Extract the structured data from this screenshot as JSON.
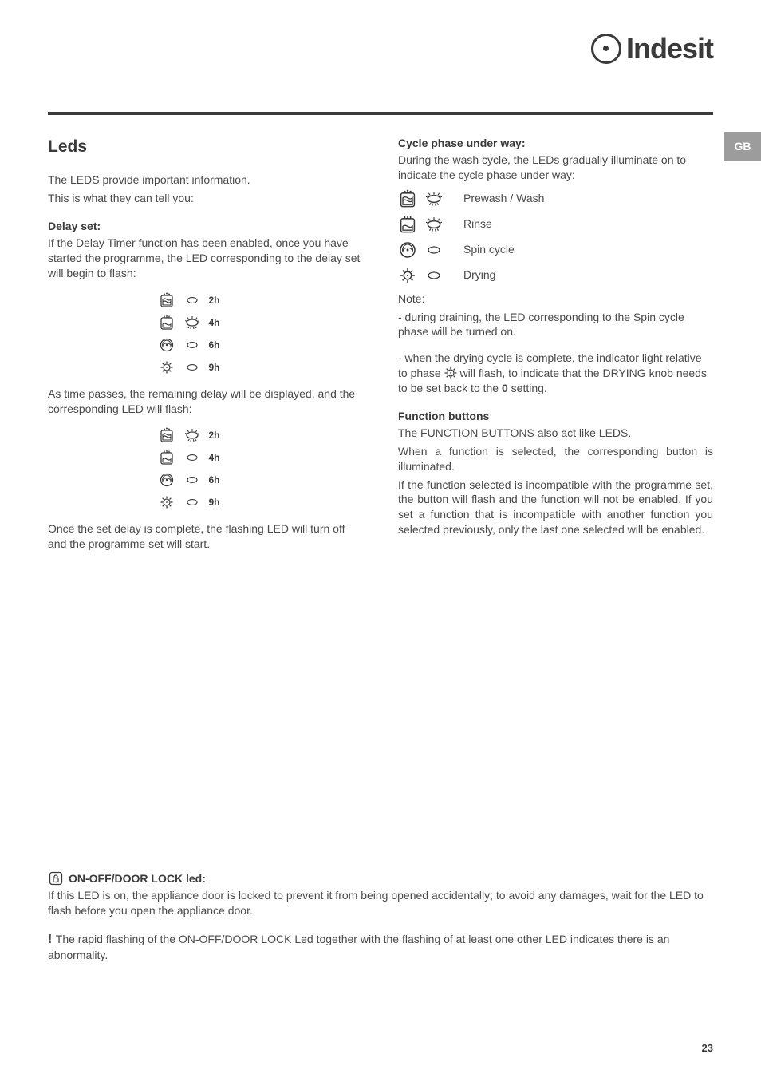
{
  "brand": {
    "name": "Indesit"
  },
  "lang_tab": "GB",
  "left": {
    "heading": "Leds",
    "intro1": "The LEDS provide important information.",
    "intro2": "This is what they can tell you:",
    "delay_heading": "Delay set:",
    "delay_text": "If the Delay Timer function has been enabled, once you have started the programme, the LED corresponding to the delay set will begin to flash:",
    "delay_group1": [
      {
        "phase": "prewash",
        "led": "off",
        "label": "2h"
      },
      {
        "phase": "rinse",
        "led": "flash",
        "label": "4h"
      },
      {
        "phase": "spin",
        "led": "off",
        "label": "6h"
      },
      {
        "phase": "dry",
        "led": "off",
        "label": "9h"
      }
    ],
    "mid_text": "As time passes, the remaining delay will be displayed, and the corresponding LED will flash:",
    "delay_group2": [
      {
        "phase": "prewash",
        "led": "flash",
        "label": "2h"
      },
      {
        "phase": "rinse",
        "led": "off",
        "label": "4h"
      },
      {
        "phase": "spin",
        "led": "off",
        "label": "6h"
      },
      {
        "phase": "dry",
        "led": "off",
        "label": "9h"
      }
    ],
    "end_text": "Once the set delay is complete, the flashing LED will turn off and the programme set will start."
  },
  "right": {
    "cycle_heading": "Cycle phase under way:",
    "cycle_text": "During the wash cycle, the LEDs gradually illuminate  on to indicate the cycle phase under way:",
    "phases": [
      {
        "phase": "prewash",
        "led": "flash",
        "label": "Prewash / Wash"
      },
      {
        "phase": "rinse",
        "led": "flash",
        "label": "Rinse"
      },
      {
        "phase": "spin",
        "led": "off",
        "label": "Spin cycle"
      },
      {
        "phase": "dry",
        "led": "off",
        "label": "Drying"
      }
    ],
    "note_label": "Note:",
    "note1": "- during draining, the LED corresponding to the Spin cycle phase will be turned on.",
    "note2a": "- when the drying cycle is complete, the indicator light relative to phase ",
    "note2b": " will flash, to indicate that the DRYING knob needs to be set back to the ",
    "note2_bold": "0",
    "note2c": " setting.",
    "fb_heading": "Function buttons",
    "fb1": "The FUNCTION BUTTONS also act like LEDS.",
    "fb2": "When a function is selected, the corresponding button is illuminated.",
    "fb3": "If the function selected is incompatible with the programme set, the button will flash and the function will not be enabled. If you set a function that is incompatible with another function you selected previously, only the last one selected will be enabled."
  },
  "footer": {
    "lock_heading": "ON-OFF/DOOR LOCK led:",
    "lock_text": "If this LED is on, the appliance door is locked to prevent it from being opened accidentally; to avoid any damages, wait for the LED to flash before you open the appliance door.",
    "warn_text": "The rapid flashing of the ON-OFF/DOOR LOCK Led together with the flashing of at least one other LED indicates there is an abnormality."
  },
  "page_number": "23",
  "colors": {
    "text": "#4a4a4a",
    "strong": "#3a3a3a",
    "tab": "#9c9c9c"
  }
}
